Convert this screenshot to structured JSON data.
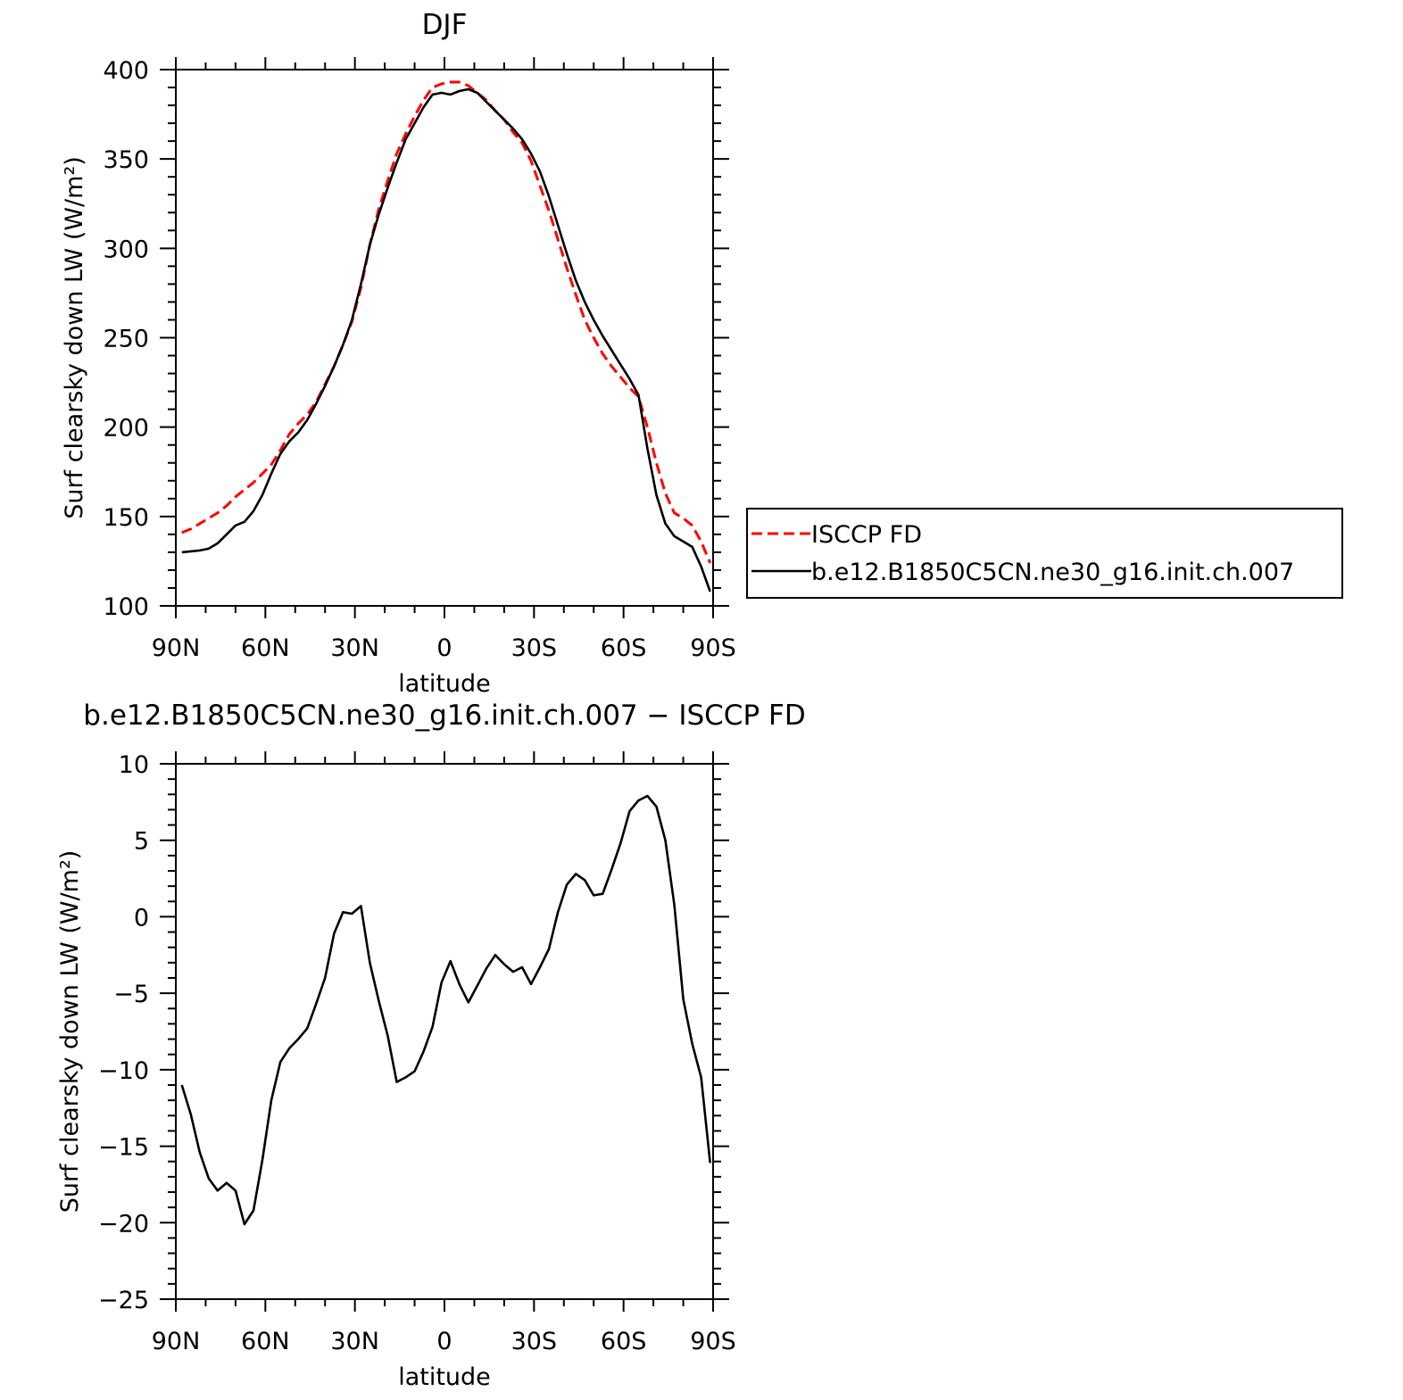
{
  "chart_data": [
    {
      "type": "line",
      "title": "DJF",
      "xlabel": "latitude",
      "ylabel": "Surf clearsky down LW (W/m²)",
      "xlim": [
        90,
        -90
      ],
      "ylim": [
        100,
        400
      ],
      "xticks": [
        90,
        60,
        30,
        0,
        -30,
        -60,
        -90
      ],
      "xticklabels": [
        "90N",
        "60N",
        "30N",
        "0",
        "30S",
        "60S",
        "90S"
      ],
      "yticks": [
        100,
        150,
        200,
        250,
        300,
        350,
        400
      ],
      "yticklabels": [
        "100",
        "150",
        "200",
        "250",
        "300",
        "350",
        "400"
      ],
      "legend": {
        "position": "right",
        "entries": [
          "ISCCP FD",
          "b.e12.B1850C5CN.ne30_g16.init.ch.007"
        ]
      },
      "series": [
        {
          "name": "ISCCP FD",
          "color": "#ff0000",
          "style": "dashed",
          "x": [
            88,
            85,
            82,
            79,
            76,
            73,
            70,
            67,
            64,
            61,
            58,
            55,
            52,
            49,
            46,
            43,
            40,
            37,
            34,
            31,
            28,
            25,
            22,
            19,
            16,
            13,
            10,
            7,
            4,
            1,
            -2,
            -5,
            -8,
            -11,
            -14,
            -17,
            -20,
            -23,
            -26,
            -29,
            -32,
            -35,
            -38,
            -41,
            -44,
            -47,
            -50,
            -53,
            -56,
            -59,
            -62,
            -65,
            -68,
            -71,
            -74,
            -77,
            -80,
            -83,
            -86,
            -89
          ],
          "y": [
            141,
            143,
            146,
            149,
            152,
            156,
            161,
            165,
            169,
            174,
            179,
            187,
            196,
            202,
            207,
            214,
            224,
            234,
            246,
            259,
            278,
            302,
            322,
            338,
            353,
            364,
            374,
            383,
            390,
            392,
            393,
            393,
            391,
            387,
            383,
            377,
            372,
            365,
            359,
            349,
            335,
            321,
            305,
            289,
            274,
            260,
            250,
            241,
            234,
            228,
            222,
            217,
            200,
            180,
            163,
            152,
            149,
            145,
            136,
            124
          ]
        },
        {
          "name": "b.e12.B1850C5CN.ne30_g16.init.ch.007",
          "color": "#000000",
          "style": "solid",
          "x": [
            88,
            85,
            82,
            79,
            76,
            73,
            70,
            67,
            64,
            61,
            58,
            55,
            52,
            49,
            46,
            43,
            40,
            37,
            34,
            31,
            28,
            25,
            22,
            19,
            16,
            13,
            10,
            7,
            4,
            1,
            -2,
            -5,
            -8,
            -11,
            -14,
            -17,
            -20,
            -23,
            -26,
            -29,
            -32,
            -35,
            -38,
            -41,
            -44,
            -47,
            -50,
            -53,
            -56,
            -59,
            -62,
            -65,
            -68,
            -71,
            -74,
            -77,
            -80,
            -83,
            -86,
            -89
          ],
          "y": [
            130,
            130.5,
            131,
            132,
            135,
            140,
            145,
            147,
            153,
            162,
            174,
            185,
            192,
            197,
            204,
            213,
            223,
            234,
            246,
            260,
            280,
            302,
            319,
            334,
            348,
            361,
            370,
            379,
            386,
            387,
            386,
            388,
            389,
            387,
            382,
            377,
            372,
            367,
            361,
            353,
            343,
            329,
            313,
            297,
            282,
            270,
            260,
            251,
            243,
            235,
            227,
            218,
            188,
            162,
            146,
            139,
            136,
            133,
            122,
            108
          ]
        }
      ]
    },
    {
      "type": "line",
      "title": "b.e12.B1850C5CN.ne30_g16.init.ch.007 − ISCCP FD",
      "xlabel": "latitude",
      "ylabel": "Surf clearsky down LW (W/m²)",
      "xlim": [
        90,
        -90
      ],
      "ylim": [
        -25,
        10
      ],
      "xticks": [
        90,
        60,
        30,
        0,
        -30,
        -60,
        -90
      ],
      "xticklabels": [
        "90N",
        "60N",
        "30N",
        "0",
        "30S",
        "60S",
        "90S"
      ],
      "yticks": [
        -25,
        -20,
        -15,
        -10,
        -5,
        0,
        5,
        10
      ],
      "yticklabels": [
        "−25",
        "−20",
        "−15",
        "−10",
        "−5",
        "0",
        "5",
        "10"
      ],
      "series": [
        {
          "color": "#000000",
          "style": "solid",
          "x": [
            88,
            85,
            82,
            79,
            76,
            73,
            70,
            67,
            64,
            61,
            58,
            55,
            52,
            49,
            46,
            43,
            40,
            37,
            34,
            31,
            28,
            25,
            22,
            19,
            16,
            13,
            10,
            7,
            4,
            1,
            -2,
            -5,
            -8,
            -11,
            -14,
            -17,
            -20,
            -23,
            -26,
            -29,
            -32,
            -35,
            -38,
            -41,
            -44,
            -47,
            -50,
            -53,
            -56,
            -59,
            -62,
            -65,
            -68,
            -71,
            -74,
            -77,
            -80,
            -83,
            -86,
            -89
          ],
          "y": [
            -11.0,
            -12.9,
            -15.4,
            -17.1,
            -17.9,
            -17.4,
            -17.9,
            -20.1,
            -19.2,
            -15.9,
            -12.0,
            -9.5,
            -8.6,
            -8.0,
            -7.3,
            -5.7,
            -4.0,
            -1.1,
            0.3,
            0.2,
            0.7,
            -3.0,
            -5.5,
            -7.8,
            -10.8,
            -10.5,
            -10.1,
            -8.8,
            -7.2,
            -4.3,
            -2.9,
            -4.4,
            -5.6,
            -4.5,
            -3.4,
            -2.5,
            -3.1,
            -3.6,
            -3.3,
            -4.4,
            -3.3,
            -2.1,
            0.3,
            2.1,
            2.8,
            2.4,
            1.4,
            1.5,
            3.1,
            4.8,
            6.9,
            7.6,
            7.9,
            7.2,
            5.0,
            0.8,
            -5.4,
            -8.3,
            -10.5,
            -16.1
          ]
        }
      ]
    }
  ]
}
